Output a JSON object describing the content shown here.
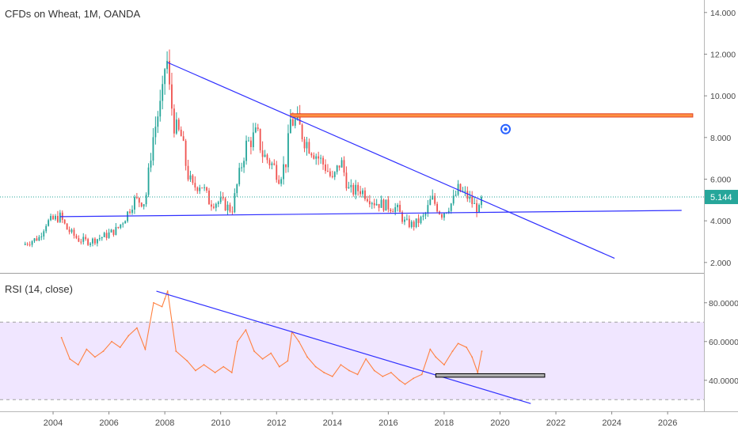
{
  "colors": {
    "up": "#26a69a",
    "down": "#ef5350",
    "trend": "#3030ff",
    "resistance_fill": "#ff9040",
    "resistance_stroke": "#e0452a",
    "last_price": "#26a69a",
    "rsi_line": "#ff8040",
    "rsi_band": "#f0e6ff",
    "support_box": "#b0b0b0",
    "axis_text": "#4a4a4a",
    "marker": "#2962ff"
  },
  "icons": {
    "alert": "alert-marker-icon"
  },
  "chart_data": [
    {
      "type": "candlestick",
      "title": "CFDs on Wheat, 1M, OANDA",
      "ylim": [
        1.5,
        14.6
      ],
      "xlim": [
        2002.1,
        2027.3
      ],
      "y_ticks": [
        "2.000",
        "4.000",
        "6.000",
        "8.000",
        "10.000",
        "12.000",
        "14.000"
      ],
      "y_tick_values": [
        2,
        4,
        6,
        8,
        10,
        12,
        14
      ],
      "last_price": "5.144",
      "last_price_value": 5.144,
      "grid": false,
      "close_anchors": [
        [
          2003.0,
          2.9
        ],
        [
          2003.5,
          3.2
        ],
        [
          2003.75,
          3.9
        ],
        [
          2004.25,
          4.2
        ],
        [
          2004.5,
          3.6
        ],
        [
          2004.9,
          3.1
        ],
        [
          2005.3,
          3.0
        ],
        [
          2005.9,
          3.3
        ],
        [
          2006.3,
          3.6
        ],
        [
          2006.6,
          4.2
        ],
        [
          2006.9,
          5.0
        ],
        [
          2007.3,
          4.9
        ],
        [
          2007.55,
          7.8
        ],
        [
          2007.75,
          9.1
        ],
        [
          2007.9,
          9.7
        ],
        [
          2008.05,
          12.2
        ],
        [
          2008.15,
          10.4
        ],
        [
          2008.35,
          8.5
        ],
        [
          2008.6,
          8.0
        ],
        [
          2008.8,
          6.3
        ],
        [
          2009.0,
          5.6
        ],
        [
          2009.3,
          5.8
        ],
        [
          2009.6,
          4.9
        ],
        [
          2010.0,
          4.9
        ],
        [
          2010.4,
          4.5
        ],
        [
          2010.6,
          5.8
        ],
        [
          2010.9,
          7.6
        ],
        [
          2011.3,
          8.2
        ],
        [
          2011.5,
          7.2
        ],
        [
          2011.9,
          6.6
        ],
        [
          2012.1,
          6.1
        ],
        [
          2012.35,
          6.9
        ],
        [
          2012.5,
          8.8
        ],
        [
          2012.75,
          8.7
        ],
        [
          2013.0,
          7.9
        ],
        [
          2013.4,
          7.2
        ],
        [
          2013.8,
          6.5
        ],
        [
          2014.0,
          5.9
        ],
        [
          2014.3,
          6.9
        ],
        [
          2014.6,
          5.4
        ],
        [
          2015.0,
          5.5
        ],
        [
          2015.5,
          4.9
        ],
        [
          2016.0,
          4.7
        ],
        [
          2016.3,
          4.6
        ],
        [
          2016.6,
          3.9
        ],
        [
          2016.9,
          3.8
        ],
        [
          2017.3,
          4.2
        ],
        [
          2017.55,
          5.1
        ],
        [
          2017.9,
          4.3
        ],
        [
          2018.3,
          4.9
        ],
        [
          2018.5,
          5.5
        ],
        [
          2018.8,
          5.2
        ],
        [
          2019.1,
          4.7
        ],
        [
          2019.25,
          4.5
        ],
        [
          2019.35,
          5.14
        ]
      ],
      "lines": [
        {
          "name": "falling trendline",
          "from": [
            2008.1,
            11.6
          ],
          "to": [
            2024.1,
            2.2
          ]
        },
        {
          "name": "rising support line",
          "from": [
            2004.25,
            4.2
          ],
          "to": [
            2026.5,
            4.5
          ]
        }
      ],
      "zone": {
        "name": "resistance zone",
        "x": [
          2012.5,
          2026.9
        ],
        "y": [
          8.98,
          9.14
        ]
      },
      "marker": {
        "x": 2020.2,
        "y": 8.4
      }
    },
    {
      "type": "line",
      "title": "RSI (14, close)",
      "ylim": [
        24,
        95
      ],
      "y_ticks": [
        "40.0000",
        "60.0000",
        "80.0000"
      ],
      "y_tick_values": [
        40,
        60,
        80
      ],
      "band": [
        30,
        70
      ],
      "grid": false,
      "series": [
        {
          "name": "",
          "x": [
            2004.3,
            2004.6,
            2004.9,
            2005.2,
            2005.5,
            2005.8,
            2006.1,
            2006.4,
            2006.7,
            2007.0,
            2007.3,
            2007.6,
            2007.9,
            2008.0,
            2008.1,
            2008.4,
            2008.8,
            2009.1,
            2009.4,
            2009.8,
            2010.1,
            2010.4,
            2010.6,
            2010.9,
            2011.2,
            2011.5,
            2011.8,
            2012.1,
            2012.4,
            2012.55,
            2012.8,
            2013.1,
            2013.4,
            2013.7,
            2014.0,
            2014.3,
            2014.6,
            2014.9,
            2015.2,
            2015.5,
            2015.8,
            2016.1,
            2016.4,
            2016.6,
            2016.9,
            2017.2,
            2017.5,
            2017.7,
            2018.0,
            2018.3,
            2018.5,
            2018.8,
            2019.0,
            2019.2,
            2019.35
          ],
          "values": [
            62,
            51,
            48,
            56,
            52,
            55,
            60,
            57,
            63,
            67,
            56,
            80,
            78,
            82,
            86,
            55,
            50,
            45,
            48,
            44,
            47,
            44,
            60,
            66,
            55,
            51,
            54,
            47,
            50,
            65,
            60,
            52,
            47,
            44,
            42,
            48,
            45,
            43,
            51,
            45,
            42,
            44,
            40,
            38,
            41,
            43,
            56,
            52,
            48,
            55,
            59,
            57,
            52,
            44,
            55
          ]
        }
      ],
      "lines": [
        {
          "name": "rsi falling trendline",
          "from": [
            2007.7,
            86
          ],
          "to": [
            2021.1,
            28
          ]
        }
      ],
      "box": {
        "name": "rsi support box",
        "x": [
          2017.7,
          2021.6
        ],
        "y": [
          41.6,
          43.4
        ]
      }
    }
  ],
  "x_axis": {
    "ticks": [
      "2004",
      "2006",
      "2008",
      "2010",
      "2012",
      "2014",
      "2016",
      "2018",
      "2020",
      "2022",
      "2024",
      "2026"
    ],
    "tick_values": [
      2004,
      2006,
      2008,
      2010,
      2012,
      2014,
      2016,
      2018,
      2020,
      2022,
      2024,
      2026
    ]
  }
}
